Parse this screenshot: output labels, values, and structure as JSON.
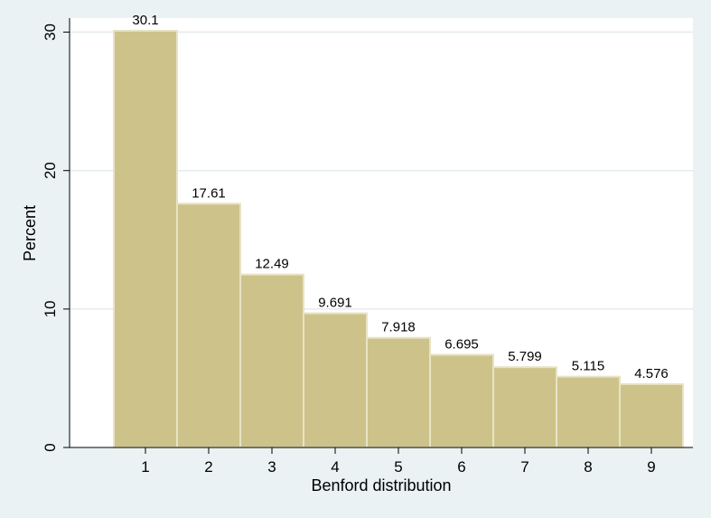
{
  "chart_data": {
    "type": "bar",
    "title": "",
    "xlabel": "Benford distribution",
    "ylabel": "Percent",
    "categories": [
      "1",
      "2",
      "3",
      "4",
      "5",
      "6",
      "7",
      "8",
      "9"
    ],
    "values": [
      30.1,
      17.61,
      12.49,
      9.691,
      7.918,
      6.695,
      5.799,
      5.115,
      4.576
    ],
    "data_labels": [
      "30.1",
      "17.61",
      "12.49",
      "9.691",
      "7.918",
      "6.695",
      "5.799",
      "5.115",
      "4.576"
    ],
    "ylim": [
      0,
      30.1
    ],
    "yticks": [
      "0",
      "10",
      "20",
      "30"
    ],
    "grid": true,
    "legend": "none",
    "colors": {
      "background": "#eaf2f3",
      "plot_background": "#ffffff",
      "bar_fill": "#cdc38a",
      "bar_stroke": "#e8e3c4",
      "grid": "#e3ecee",
      "axis": "#000000"
    }
  }
}
